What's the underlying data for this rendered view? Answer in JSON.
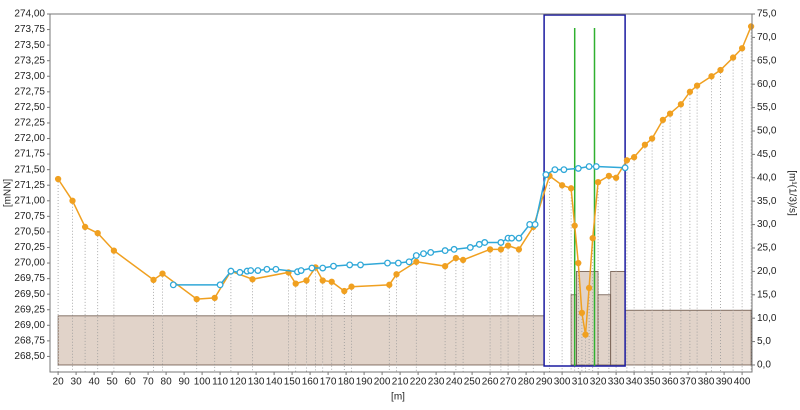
{
  "chart_data": {
    "type": "profile",
    "x_label": "[m]",
    "y_label": "[mNN]",
    "y2_label": "[m¹(1/3)/s]",
    "xlim": [
      15.5,
      405.5
    ],
    "xticks": [
      20,
      30,
      40,
      50,
      60,
      70,
      80,
      90,
      100,
      110,
      120,
      130,
      140,
      150,
      160,
      170,
      180,
      190,
      200,
      210,
      220,
      230,
      240,
      250,
      260,
      270,
      280,
      290,
      300,
      310,
      320,
      330,
      340,
      350,
      360,
      370,
      380,
      390,
      400
    ],
    "ylim": [
      268.25,
      274.0
    ],
    "yticks": [
      {
        "value": 268.5,
        "label": "268,50"
      },
      {
        "value": 268.75,
        "label": "268,75"
      },
      {
        "value": 269.0,
        "label": "269,00"
      },
      {
        "value": 269.25,
        "label": "269,25"
      },
      {
        "value": 269.5,
        "label": "269,50"
      },
      {
        "value": 269.75,
        "label": "269,75"
      },
      {
        "value": 270.0,
        "label": "270,00"
      },
      {
        "value": 270.25,
        "label": "270,25"
      },
      {
        "value": 270.5,
        "label": "270,50"
      },
      {
        "value": 270.75,
        "label": "270,75"
      },
      {
        "value": 271.0,
        "label": "271,00"
      },
      {
        "value": 271.25,
        "label": "271,25"
      },
      {
        "value": 271.5,
        "label": "271,50"
      },
      {
        "value": 271.75,
        "label": "271,75"
      },
      {
        "value": 272.0,
        "label": "272,00"
      },
      {
        "value": 272.25,
        "label": "272,25"
      },
      {
        "value": 272.5,
        "label": "272,50"
      },
      {
        "value": 272.75,
        "label": "272,75"
      },
      {
        "value": 273.0,
        "label": "273,00"
      },
      {
        "value": 273.25,
        "label": "273,25"
      },
      {
        "value": 273.5,
        "label": "273,50"
      },
      {
        "value": 273.75,
        "label": "273,75"
      },
      {
        "value": 274.0,
        "label": "274,00"
      }
    ],
    "y2lim": [
      -1.5,
      75.0
    ],
    "y2ticks": [
      {
        "value": 0,
        "label": "0,0"
      },
      {
        "value": 5,
        "label": "5,0"
      },
      {
        "value": 10,
        "label": "10,0"
      },
      {
        "value": 15,
        "label": "15,0"
      },
      {
        "value": 20,
        "label": "20,0"
      },
      {
        "value": 25,
        "label": "25,0"
      },
      {
        "value": 30,
        "label": "30,0"
      },
      {
        "value": 35,
        "label": "35,0"
      },
      {
        "value": 40,
        "label": "40,0"
      },
      {
        "value": 45,
        "label": "45,0"
      },
      {
        "value": 50,
        "label": "50,0"
      },
      {
        "value": 55,
        "label": "55,0"
      },
      {
        "value": 60,
        "label": "60,0"
      },
      {
        "value": 65,
        "label": "65,0"
      },
      {
        "value": 70,
        "label": "70,0"
      },
      {
        "value": 75,
        "label": "75,0"
      }
    ],
    "roughness": {
      "color": "#dccbc0",
      "bins": [
        20,
        290,
        305,
        308,
        318,
        320,
        327,
        335,
        405
      ],
      "values": [
        10.5,
        0,
        15,
        20,
        20,
        15,
        20,
        11.7
      ]
    },
    "series": [
      {
        "color": "#f0a020",
        "marker": "filled",
        "x": [
          20,
          28,
          35,
          42,
          51,
          73,
          78,
          97,
          107,
          116,
          128,
          148,
          152,
          158,
          163,
          167,
          172,
          179,
          183,
          204,
          208,
          219,
          235,
          241,
          245,
          260,
          266,
          270,
          276,
          284,
          293,
          300,
          305,
          307,
          309,
          311,
          313,
          315,
          317,
          320,
          326,
          330,
          336,
          340,
          346,
          350,
          356,
          360,
          366,
          371,
          375,
          383,
          388,
          395,
          400,
          405
        ],
        "values": [
          271.35,
          271.0,
          270.58,
          270.48,
          270.2,
          269.73,
          269.83,
          269.42,
          269.44,
          269.87,
          269.74,
          269.85,
          269.67,
          269.72,
          269.93,
          269.72,
          269.7,
          269.55,
          269.62,
          269.65,
          269.82,
          270.02,
          269.95,
          270.08,
          270.05,
          270.22,
          270.22,
          270.28,
          270.22,
          270.58,
          271.4,
          271.25,
          271.2,
          270.6,
          270.0,
          269.2,
          268.85,
          269.6,
          270.4,
          271.3,
          271.4,
          271.37,
          271.65,
          271.7,
          271.9,
          272.0,
          272.3,
          272.4,
          272.55,
          272.75,
          272.85,
          273.0,
          273.1,
          273.3,
          273.45,
          273.8
        ]
      },
      {
        "color": "#30a8d8",
        "marker": "hollow",
        "x": [
          84,
          110,
          116,
          121,
          125,
          127,
          131,
          136,
          141,
          153,
          155,
          161,
          167,
          173,
          182,
          188,
          203,
          209,
          215,
          219,
          223,
          227,
          235,
          240,
          249,
          254,
          257,
          266,
          270,
          272,
          276,
          282,
          285,
          291,
          296,
          301,
          309,
          315,
          319,
          335
        ],
        "values": [
          269.65,
          269.65,
          269.87,
          269.85,
          269.87,
          269.88,
          269.88,
          269.9,
          269.9,
          269.86,
          269.88,
          269.92,
          269.92,
          269.95,
          269.97,
          269.97,
          270.0,
          270.0,
          270.02,
          270.12,
          270.15,
          270.17,
          270.2,
          270.22,
          270.25,
          270.3,
          270.33,
          270.33,
          270.4,
          270.4,
          270.4,
          270.62,
          270.62,
          271.42,
          271.5,
          271.5,
          271.52,
          271.55,
          271.55,
          271.53
        ]
      }
    ],
    "section": {
      "color": "#1a1aa0",
      "x": [
        290,
        335
      ]
    },
    "markers": {
      "color": "#30b030",
      "x": [
        307,
        318
      ],
      "top": 72.0
    }
  }
}
